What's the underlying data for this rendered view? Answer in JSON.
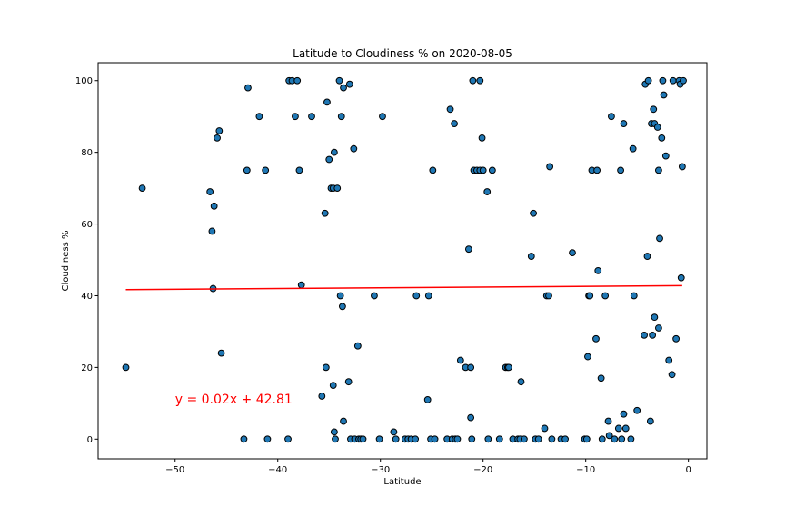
{
  "chart_data": {
    "type": "scatter",
    "title": "Latitude to Cloudiness % on 2020-08-05",
    "xlabel": "Latitude",
    "ylabel": "Cloudiness %",
    "xlim": [
      -57.5,
      1.8
    ],
    "ylim": [
      -5.5,
      105
    ],
    "x_ticks": [
      -50,
      -40,
      -30,
      -20,
      -10,
      0
    ],
    "y_ticks": [
      0,
      20,
      40,
      60,
      80,
      100
    ],
    "x_tick_labels": [
      "−50",
      "−40",
      "−30",
      "−20",
      "−10",
      "0"
    ],
    "y_tick_labels": [
      "0",
      "20",
      "40",
      "60",
      "80",
      "100"
    ],
    "grid": false,
    "legend": "none",
    "point_color": "#1f77b4",
    "point_edge_color": "#000000",
    "line_color": "#ff0000",
    "annotation": {
      "text": "y = 0.02x + 42.81",
      "x": -50,
      "y": 10,
      "color": "#ff0000"
    },
    "regression": {
      "slope": 0.02,
      "intercept": 42.81,
      "x_range": [
        -54.8,
        -0.6
      ]
    },
    "points": [
      [
        -54.8,
        20
      ],
      [
        -53.2,
        70
      ],
      [
        -46.6,
        69
      ],
      [
        -46.4,
        58
      ],
      [
        -46.2,
        65
      ],
      [
        -46.3,
        42
      ],
      [
        -45.9,
        84
      ],
      [
        -45.7,
        86
      ],
      [
        -45.5,
        24
      ],
      [
        -43.3,
        0
      ],
      [
        -43.0,
        75
      ],
      [
        -42.9,
        98
      ],
      [
        -41.8,
        90
      ],
      [
        -41.2,
        75
      ],
      [
        -41.0,
        0
      ],
      [
        -39.0,
        0
      ],
      [
        -38.9,
        100
      ],
      [
        -38.6,
        100
      ],
      [
        -38.3,
        90
      ],
      [
        -38.1,
        100
      ],
      [
        -37.9,
        75
      ],
      [
        -37.7,
        43
      ],
      [
        -36.7,
        90
      ],
      [
        -35.7,
        12
      ],
      [
        -35.4,
        63
      ],
      [
        -35.3,
        20
      ],
      [
        -35.2,
        94
      ],
      [
        -35.0,
        78
      ],
      [
        -34.8,
        70
      ],
      [
        -34.6,
        70
      ],
      [
        -34.5,
        80
      ],
      [
        -34.6,
        15
      ],
      [
        -34.5,
        2
      ],
      [
        -34.4,
        0
      ],
      [
        -34.2,
        70
      ],
      [
        -34.0,
        100
      ],
      [
        -33.9,
        40
      ],
      [
        -33.8,
        90
      ],
      [
        -33.7,
        37
      ],
      [
        -33.6,
        5
      ],
      [
        -33.6,
        98
      ],
      [
        -33.1,
        16
      ],
      [
        -33.0,
        99
      ],
      [
        -32.9,
        0
      ],
      [
        -32.6,
        81
      ],
      [
        -32.5,
        0
      ],
      [
        -32.2,
        26
      ],
      [
        -32.1,
        0
      ],
      [
        -31.9,
        0
      ],
      [
        -31.7,
        0
      ],
      [
        -30.6,
        40
      ],
      [
        -30.1,
        0
      ],
      [
        -29.8,
        90
      ],
      [
        -28.7,
        2
      ],
      [
        -28.5,
        0
      ],
      [
        -27.6,
        0
      ],
      [
        -27.3,
        0
      ],
      [
        -27.0,
        0
      ],
      [
        -26.6,
        0
      ],
      [
        -26.5,
        40
      ],
      [
        -25.4,
        11
      ],
      [
        -25.3,
        40
      ],
      [
        -25.1,
        0
      ],
      [
        -24.9,
        75
      ],
      [
        -24.7,
        0
      ],
      [
        -23.5,
        0
      ],
      [
        -23.2,
        92
      ],
      [
        -23.0,
        0
      ],
      [
        -22.8,
        88
      ],
      [
        -22.7,
        0
      ],
      [
        -22.5,
        0
      ],
      [
        -22.2,
        22
      ],
      [
        -21.7,
        20
      ],
      [
        -21.4,
        53
      ],
      [
        -21.2,
        20
      ],
      [
        -21.2,
        6
      ],
      [
        -21.1,
        0
      ],
      [
        -21.0,
        100
      ],
      [
        -20.9,
        75
      ],
      [
        -20.6,
        75
      ],
      [
        -20.3,
        100
      ],
      [
        -20.3,
        75
      ],
      [
        -20.1,
        84
      ],
      [
        -20.0,
        75
      ],
      [
        -19.6,
        69
      ],
      [
        -19.5,
        0
      ],
      [
        -19.1,
        75
      ],
      [
        -18.4,
        0
      ],
      [
        -17.8,
        20
      ],
      [
        -17.6,
        20
      ],
      [
        -17.5,
        20
      ],
      [
        -17.1,
        0
      ],
      [
        -16.6,
        0
      ],
      [
        -16.4,
        0
      ],
      [
        -16.3,
        16
      ],
      [
        -16.0,
        0
      ],
      [
        -15.3,
        51
      ],
      [
        -15.1,
        63
      ],
      [
        -14.9,
        0
      ],
      [
        -14.6,
        0
      ],
      [
        -14.0,
        3
      ],
      [
        -13.8,
        40
      ],
      [
        -13.6,
        40
      ],
      [
        -13.5,
        76
      ],
      [
        -13.3,
        0
      ],
      [
        -12.4,
        0
      ],
      [
        -12.0,
        0
      ],
      [
        -11.3,
        52
      ],
      [
        -10.1,
        0
      ],
      [
        -9.9,
        0
      ],
      [
        -9.8,
        23
      ],
      [
        -9.7,
        40
      ],
      [
        -9.6,
        40
      ],
      [
        -9.4,
        75
      ],
      [
        -9.0,
        28
      ],
      [
        -8.9,
        75
      ],
      [
        -8.8,
        47
      ],
      [
        -8.5,
        17
      ],
      [
        -8.4,
        0
      ],
      [
        -8.1,
        40
      ],
      [
        -7.8,
        5
      ],
      [
        -7.7,
        1
      ],
      [
        -7.5,
        90
      ],
      [
        -7.2,
        0
      ],
      [
        -6.8,
        3
      ],
      [
        -6.6,
        75
      ],
      [
        -6.5,
        0
      ],
      [
        -6.3,
        88
      ],
      [
        -6.3,
        7
      ],
      [
        -6.1,
        3
      ],
      [
        -5.6,
        0
      ],
      [
        -5.4,
        81
      ],
      [
        -5.3,
        40
      ],
      [
        -5.0,
        8
      ],
      [
        -4.3,
        29
      ],
      [
        -4.2,
        99
      ],
      [
        -4.0,
        51
      ],
      [
        -3.9,
        100
      ],
      [
        -3.7,
        5
      ],
      [
        -3.6,
        88
      ],
      [
        -3.5,
        29
      ],
      [
        -3.4,
        92
      ],
      [
        -3.3,
        34
      ],
      [
        -3.3,
        88
      ],
      [
        -3.0,
        87
      ],
      [
        -2.9,
        31
      ],
      [
        -2.9,
        75
      ],
      [
        -2.8,
        56
      ],
      [
        -2.6,
        84
      ],
      [
        -2.5,
        100
      ],
      [
        -2.4,
        96
      ],
      [
        -2.2,
        79
      ],
      [
        -1.9,
        22
      ],
      [
        -1.6,
        18
      ],
      [
        -1.5,
        100
      ],
      [
        -1.2,
        28
      ],
      [
        -0.9,
        100
      ],
      [
        -0.8,
        99
      ],
      [
        -0.7,
        45
      ],
      [
        -0.6,
        76
      ],
      [
        -0.5,
        100
      ]
    ]
  }
}
